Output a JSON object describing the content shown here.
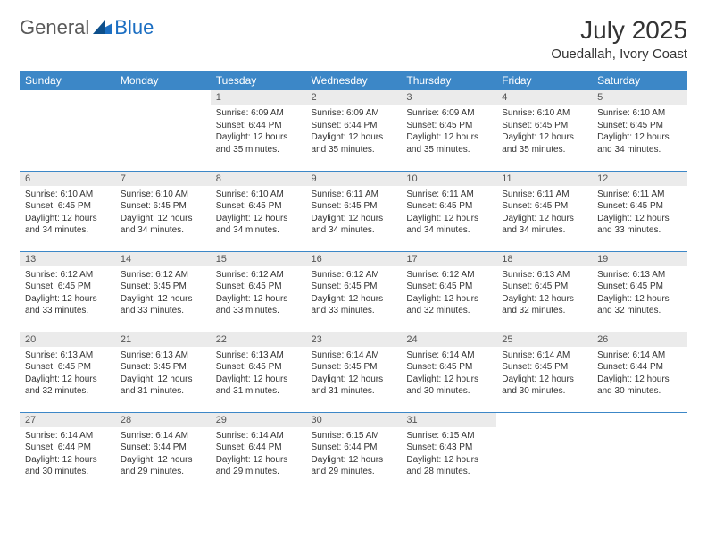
{
  "brand": {
    "general": "General",
    "blue": "Blue"
  },
  "title": "July 2025",
  "location": "Ouedallah, Ivory Coast",
  "colors": {
    "header_bg": "#3c87c7",
    "header_text": "#ffffff",
    "daynum_bg": "#ebebeb",
    "border": "#3c87c7",
    "brand_blue": "#1b6ec2",
    "brand_gray": "#5a5a5a"
  },
  "weekdays": [
    "Sunday",
    "Monday",
    "Tuesday",
    "Wednesday",
    "Thursday",
    "Friday",
    "Saturday"
  ],
  "weeks": [
    [
      {
        "day": "",
        "sunrise": "",
        "sunset": "",
        "daylight": ""
      },
      {
        "day": "",
        "sunrise": "",
        "sunset": "",
        "daylight": ""
      },
      {
        "day": "1",
        "sunrise": "6:09 AM",
        "sunset": "6:44 PM",
        "daylight": "12 hours and 35 minutes."
      },
      {
        "day": "2",
        "sunrise": "6:09 AM",
        "sunset": "6:44 PM",
        "daylight": "12 hours and 35 minutes."
      },
      {
        "day": "3",
        "sunrise": "6:09 AM",
        "sunset": "6:45 PM",
        "daylight": "12 hours and 35 minutes."
      },
      {
        "day": "4",
        "sunrise": "6:10 AM",
        "sunset": "6:45 PM",
        "daylight": "12 hours and 35 minutes."
      },
      {
        "day": "5",
        "sunrise": "6:10 AM",
        "sunset": "6:45 PM",
        "daylight": "12 hours and 34 minutes."
      }
    ],
    [
      {
        "day": "6",
        "sunrise": "6:10 AM",
        "sunset": "6:45 PM",
        "daylight": "12 hours and 34 minutes."
      },
      {
        "day": "7",
        "sunrise": "6:10 AM",
        "sunset": "6:45 PM",
        "daylight": "12 hours and 34 minutes."
      },
      {
        "day": "8",
        "sunrise": "6:10 AM",
        "sunset": "6:45 PM",
        "daylight": "12 hours and 34 minutes."
      },
      {
        "day": "9",
        "sunrise": "6:11 AM",
        "sunset": "6:45 PM",
        "daylight": "12 hours and 34 minutes."
      },
      {
        "day": "10",
        "sunrise": "6:11 AM",
        "sunset": "6:45 PM",
        "daylight": "12 hours and 34 minutes."
      },
      {
        "day": "11",
        "sunrise": "6:11 AM",
        "sunset": "6:45 PM",
        "daylight": "12 hours and 34 minutes."
      },
      {
        "day": "12",
        "sunrise": "6:11 AM",
        "sunset": "6:45 PM",
        "daylight": "12 hours and 33 minutes."
      }
    ],
    [
      {
        "day": "13",
        "sunrise": "6:12 AM",
        "sunset": "6:45 PM",
        "daylight": "12 hours and 33 minutes."
      },
      {
        "day": "14",
        "sunrise": "6:12 AM",
        "sunset": "6:45 PM",
        "daylight": "12 hours and 33 minutes."
      },
      {
        "day": "15",
        "sunrise": "6:12 AM",
        "sunset": "6:45 PM",
        "daylight": "12 hours and 33 minutes."
      },
      {
        "day": "16",
        "sunrise": "6:12 AM",
        "sunset": "6:45 PM",
        "daylight": "12 hours and 33 minutes."
      },
      {
        "day": "17",
        "sunrise": "6:12 AM",
        "sunset": "6:45 PM",
        "daylight": "12 hours and 32 minutes."
      },
      {
        "day": "18",
        "sunrise": "6:13 AM",
        "sunset": "6:45 PM",
        "daylight": "12 hours and 32 minutes."
      },
      {
        "day": "19",
        "sunrise": "6:13 AM",
        "sunset": "6:45 PM",
        "daylight": "12 hours and 32 minutes."
      }
    ],
    [
      {
        "day": "20",
        "sunrise": "6:13 AM",
        "sunset": "6:45 PM",
        "daylight": "12 hours and 32 minutes."
      },
      {
        "day": "21",
        "sunrise": "6:13 AM",
        "sunset": "6:45 PM",
        "daylight": "12 hours and 31 minutes."
      },
      {
        "day": "22",
        "sunrise": "6:13 AM",
        "sunset": "6:45 PM",
        "daylight": "12 hours and 31 minutes."
      },
      {
        "day": "23",
        "sunrise": "6:14 AM",
        "sunset": "6:45 PM",
        "daylight": "12 hours and 31 minutes."
      },
      {
        "day": "24",
        "sunrise": "6:14 AM",
        "sunset": "6:45 PM",
        "daylight": "12 hours and 30 minutes."
      },
      {
        "day": "25",
        "sunrise": "6:14 AM",
        "sunset": "6:45 PM",
        "daylight": "12 hours and 30 minutes."
      },
      {
        "day": "26",
        "sunrise": "6:14 AM",
        "sunset": "6:44 PM",
        "daylight": "12 hours and 30 minutes."
      }
    ],
    [
      {
        "day": "27",
        "sunrise": "6:14 AM",
        "sunset": "6:44 PM",
        "daylight": "12 hours and 30 minutes."
      },
      {
        "day": "28",
        "sunrise": "6:14 AM",
        "sunset": "6:44 PM",
        "daylight": "12 hours and 29 minutes."
      },
      {
        "day": "29",
        "sunrise": "6:14 AM",
        "sunset": "6:44 PM",
        "daylight": "12 hours and 29 minutes."
      },
      {
        "day": "30",
        "sunrise": "6:15 AM",
        "sunset": "6:44 PM",
        "daylight": "12 hours and 29 minutes."
      },
      {
        "day": "31",
        "sunrise": "6:15 AM",
        "sunset": "6:43 PM",
        "daylight": "12 hours and 28 minutes."
      },
      {
        "day": "",
        "sunrise": "",
        "sunset": "",
        "daylight": ""
      },
      {
        "day": "",
        "sunrise": "",
        "sunset": "",
        "daylight": ""
      }
    ]
  ],
  "labels": {
    "sunrise": "Sunrise:",
    "sunset": "Sunset:",
    "daylight": "Daylight:"
  }
}
